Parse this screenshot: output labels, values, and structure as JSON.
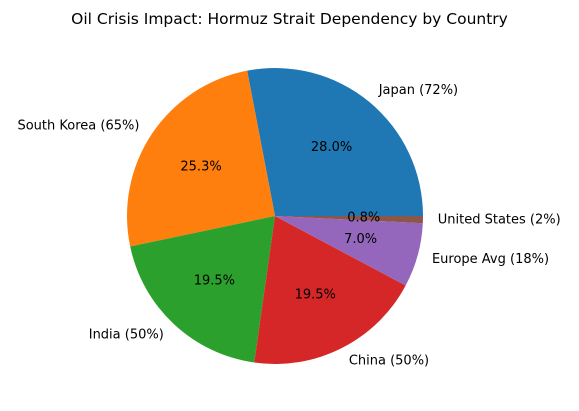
{
  "chart_data": {
    "type": "pie",
    "title": "Oil Crisis Impact: Hormuz Strait Dependency by Country",
    "start_angle_deg": 0,
    "direction": "counterclockwise",
    "slices": [
      {
        "label": "Japan (72%)",
        "value": 72,
        "pct_label": "28.0%",
        "color": "#1f77b4"
      },
      {
        "label": "South Korea (65%)",
        "value": 65,
        "pct_label": "25.3%",
        "color": "#ff7f0e"
      },
      {
        "label": "India (50%)",
        "value": 50,
        "pct_label": "19.5%",
        "color": "#2ca02c"
      },
      {
        "label": "China (50%)",
        "value": 50,
        "pct_label": "19.5%",
        "color": "#d62728"
      },
      {
        "label": "Europe Avg (18%)",
        "value": 18,
        "pct_label": "7.0%",
        "color": "#9467bd"
      },
      {
        "label": "United States (2%)",
        "value": 2,
        "pct_label": "0.8%",
        "color": "#8c564b"
      }
    ]
  }
}
